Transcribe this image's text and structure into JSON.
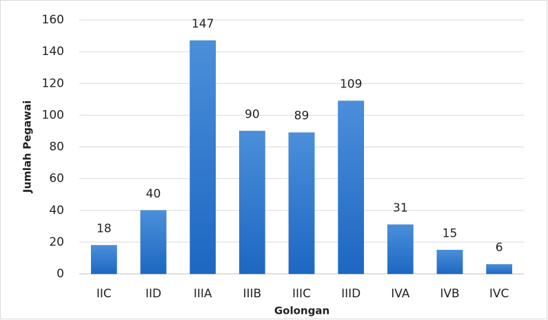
{
  "chart_data": {
    "type": "bar",
    "categories": [
      "IIC",
      "IID",
      "IIIA",
      "IIIB",
      "IIIC",
      "IIID",
      "IVA",
      "IVB",
      "IVC"
    ],
    "values": [
      18,
      40,
      147,
      90,
      89,
      109,
      31,
      15,
      6
    ],
    "color": "#2a74cc",
    "xlabel": "Golongan",
    "ylabel": "Jumlah Pegawai",
    "ylim": [
      0,
      160
    ],
    "yticks": [
      0,
      20,
      40,
      60,
      80,
      100,
      120,
      140,
      160
    ],
    "grid": true
  }
}
